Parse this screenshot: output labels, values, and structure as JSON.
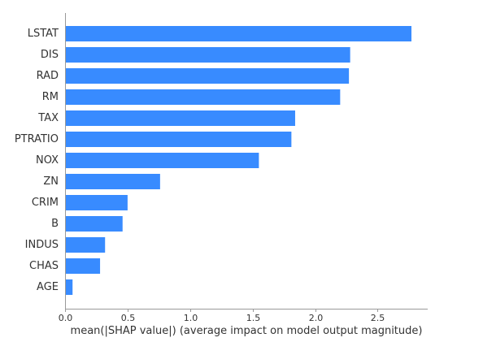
{
  "chart_data": {
    "type": "bar",
    "orientation": "horizontal",
    "categories": [
      "LSTAT",
      "DIS",
      "RAD",
      "RM",
      "TAX",
      "PTRATIO",
      "NOX",
      "ZN",
      "CRIM",
      "B",
      "INDUS",
      "CHAS",
      "AGE"
    ],
    "values": [
      2.77,
      2.28,
      2.27,
      2.2,
      1.84,
      1.81,
      1.55,
      0.76,
      0.5,
      0.46,
      0.32,
      0.28,
      0.06
    ],
    "xlabel": "mean(|SHAP value|) (average impact on model output magnitude)",
    "ylabel": "",
    "xlim": [
      0,
      2.9
    ],
    "xticks": [
      0,
      0.5,
      1,
      1.5,
      2,
      2.5
    ],
    "xtick_labels": [
      "0.0",
      "0.5",
      "1.0",
      "1.5",
      "2.0",
      "2.5"
    ],
    "grid": false,
    "bar_color": "#388bff",
    "axis_color": "#999999"
  }
}
